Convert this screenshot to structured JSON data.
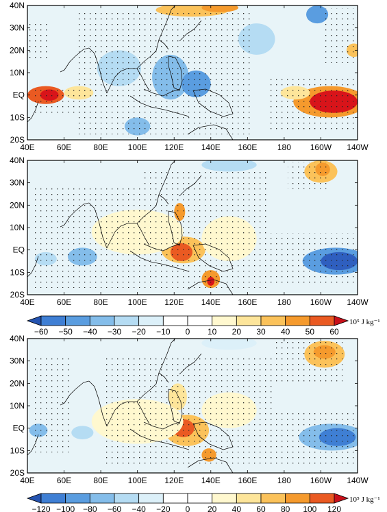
{
  "panels": [
    {
      "id": "top",
      "lat_labels": [
        "40N",
        "30N",
        "20N",
        "10N",
        "EQ",
        "10S",
        "20S"
      ],
      "lon_labels": [
        "40E",
        "60E",
        "80E",
        "100E",
        "120E",
        "140E",
        "160E",
        "180",
        "160W",
        "140W"
      ],
      "blobs": [
        {
          "lon": 50,
          "lat": 0,
          "rx": 10,
          "ry": 4,
          "level": 50
        },
        {
          "lon": 52,
          "lat": 0,
          "rx": 5,
          "ry": 2.5,
          "level": 60
        },
        {
          "lon": 68,
          "lat": 1,
          "rx": 8,
          "ry": 3,
          "level": 20
        },
        {
          "lon": 205,
          "lat": -3,
          "rx": 20,
          "ry": 7,
          "level": 40
        },
        {
          "lon": 207,
          "lat": -3,
          "rx": 13,
          "ry": 5,
          "level": 60
        },
        {
          "lon": 186,
          "lat": 1,
          "rx": 8,
          "ry": 3,
          "level": 20
        },
        {
          "lon": 218,
          "lat": 20,
          "rx": 4,
          "ry": 3,
          "level": 30
        },
        {
          "lon": 130,
          "lat": 38,
          "rx": 20,
          "ry": 3,
          "level": 30
        },
        {
          "lon": 145,
          "lat": 39,
          "rx": 10,
          "ry": 2,
          "level": 40
        },
        {
          "lon": 118,
          "lat": 8,
          "rx": 10,
          "ry": 10,
          "level": -30
        },
        {
          "lon": 132,
          "lat": 5,
          "rx": 8,
          "ry": 6,
          "level": -40
        },
        {
          "lon": 100,
          "lat": -14,
          "rx": 7,
          "ry": 4,
          "level": -30
        },
        {
          "lon": 198,
          "lat": 36,
          "rx": 6,
          "ry": 4,
          "level": -40
        },
        {
          "lon": 165,
          "lat": 25,
          "rx": 10,
          "ry": 7,
          "level": -20
        },
        {
          "lon": 90,
          "lat": 12,
          "rx": 12,
          "ry": 8,
          "level": -20
        }
      ]
    },
    {
      "id": "middle",
      "lat_labels": [
        "40N",
        "30N",
        "20N",
        "10N",
        "EQ",
        "10S",
        "20S"
      ],
      "lon_labels": [
        "40E",
        "60E",
        "80E",
        "100E",
        "120E",
        "140E",
        "160E",
        "180",
        "160W",
        "140W"
      ],
      "blobs": [
        {
          "lon": 200,
          "lat": 35,
          "rx": 9,
          "ry": 5,
          "level": 30
        },
        {
          "lon": 201,
          "lat": 36,
          "rx": 4,
          "ry": 3,
          "level": 40
        },
        {
          "lon": 123,
          "lat": 17,
          "rx": 3,
          "ry": 4,
          "level": 40
        },
        {
          "lon": 125,
          "lat": 0,
          "rx": 12,
          "ry": 6,
          "level": 30
        },
        {
          "lon": 124,
          "lat": -1,
          "rx": 6,
          "ry": 4,
          "level": 50
        },
        {
          "lon": 140,
          "lat": -13,
          "rx": 5,
          "ry": 4,
          "level": 40
        },
        {
          "lon": 140,
          "lat": -14,
          "rx": 2,
          "ry": 2,
          "level": 60
        },
        {
          "lon": 100,
          "lat": 8,
          "rx": 25,
          "ry": 10,
          "level": 10
        },
        {
          "lon": 150,
          "lat": 5,
          "rx": 15,
          "ry": 10,
          "level": 10
        },
        {
          "lon": 208,
          "lat": -5,
          "rx": 18,
          "ry": 6,
          "level": -40
        },
        {
          "lon": 210,
          "lat": -5,
          "rx": 10,
          "ry": 4,
          "level": -60
        },
        {
          "lon": 70,
          "lat": -3,
          "rx": 8,
          "ry": 4,
          "level": -30
        },
        {
          "lon": 50,
          "lat": -4,
          "rx": 6,
          "ry": 3,
          "level": -20
        },
        {
          "lon": 150,
          "lat": 38,
          "rx": 15,
          "ry": 3,
          "level": -20
        }
      ]
    },
    {
      "id": "bottom",
      "lat_labels": [
        "40N",
        "30N",
        "20N",
        "10N",
        "EQ",
        "10S",
        "20S"
      ],
      "lon_labels": [
        "40E",
        "60E",
        "80E",
        "100E",
        "120E",
        "140E",
        "160E",
        "180",
        "160W",
        "140W"
      ],
      "blobs": [
        {
          "lon": 202,
          "lat": 33,
          "rx": 11,
          "ry": 6,
          "level": 60
        },
        {
          "lon": 202,
          "lat": 34,
          "rx": 6,
          "ry": 3,
          "level": 80
        },
        {
          "lon": 122,
          "lat": 14,
          "rx": 5,
          "ry": 6,
          "level": 40
        },
        {
          "lon": 127,
          "lat": -1,
          "rx": 12,
          "ry": 7,
          "level": 60
        },
        {
          "lon": 125,
          "lat": 0,
          "rx": 6,
          "ry": 4,
          "level": 100
        },
        {
          "lon": 139,
          "lat": -12,
          "rx": 4,
          "ry": 3,
          "level": 80
        },
        {
          "lon": 100,
          "lat": 3,
          "rx": 25,
          "ry": 10,
          "level": 20
        },
        {
          "lon": 150,
          "lat": 8,
          "rx": 15,
          "ry": 8,
          "level": 20
        },
        {
          "lon": 206,
          "lat": -4,
          "rx": 18,
          "ry": 6,
          "level": -60
        },
        {
          "lon": 209,
          "lat": -4,
          "rx": 10,
          "ry": 4,
          "level": -100
        },
        {
          "lon": 46,
          "lat": -1,
          "rx": 5,
          "ry": 3,
          "level": -60
        },
        {
          "lon": 70,
          "lat": -2,
          "rx": 6,
          "ry": 3,
          "level": -40
        },
        {
          "lon": 150,
          "lat": 38,
          "rx": 15,
          "ry": 3,
          "level": -20
        }
      ]
    }
  ],
  "colorbars": [
    {
      "id": "cb1",
      "ticks": [
        "−60",
        "−50",
        "−40",
        "−30",
        "−20",
        "−10",
        "0",
        "10",
        "20",
        "30",
        "40",
        "50",
        "60"
      ],
      "unit": "10⁵ J kg⁻¹"
    },
    {
      "id": "cb2",
      "ticks": [
        "−120",
        "−100",
        "−80",
        "−60",
        "−40",
        "−20",
        "0",
        "20",
        "40",
        "60",
        "80",
        "100",
        "120"
      ],
      "unit": "10⁵ J kg⁻¹"
    }
  ],
  "palette": {
    "levels": [
      -60,
      -50,
      -40,
      -30,
      -20,
      -10,
      0,
      10,
      20,
      30,
      40,
      50,
      60
    ],
    "colors": [
      "#2f5fbf",
      "#3f7fd4",
      "#5a9de0",
      "#84bdea",
      "#b5dcf3",
      "#dcf0f9",
      "#ffffff",
      "#fff8cf",
      "#fde59a",
      "#fbc25a",
      "#f59a2d",
      "#ea5a22",
      "#d8141a"
    ],
    "background": "#e8f4f8"
  }
}
